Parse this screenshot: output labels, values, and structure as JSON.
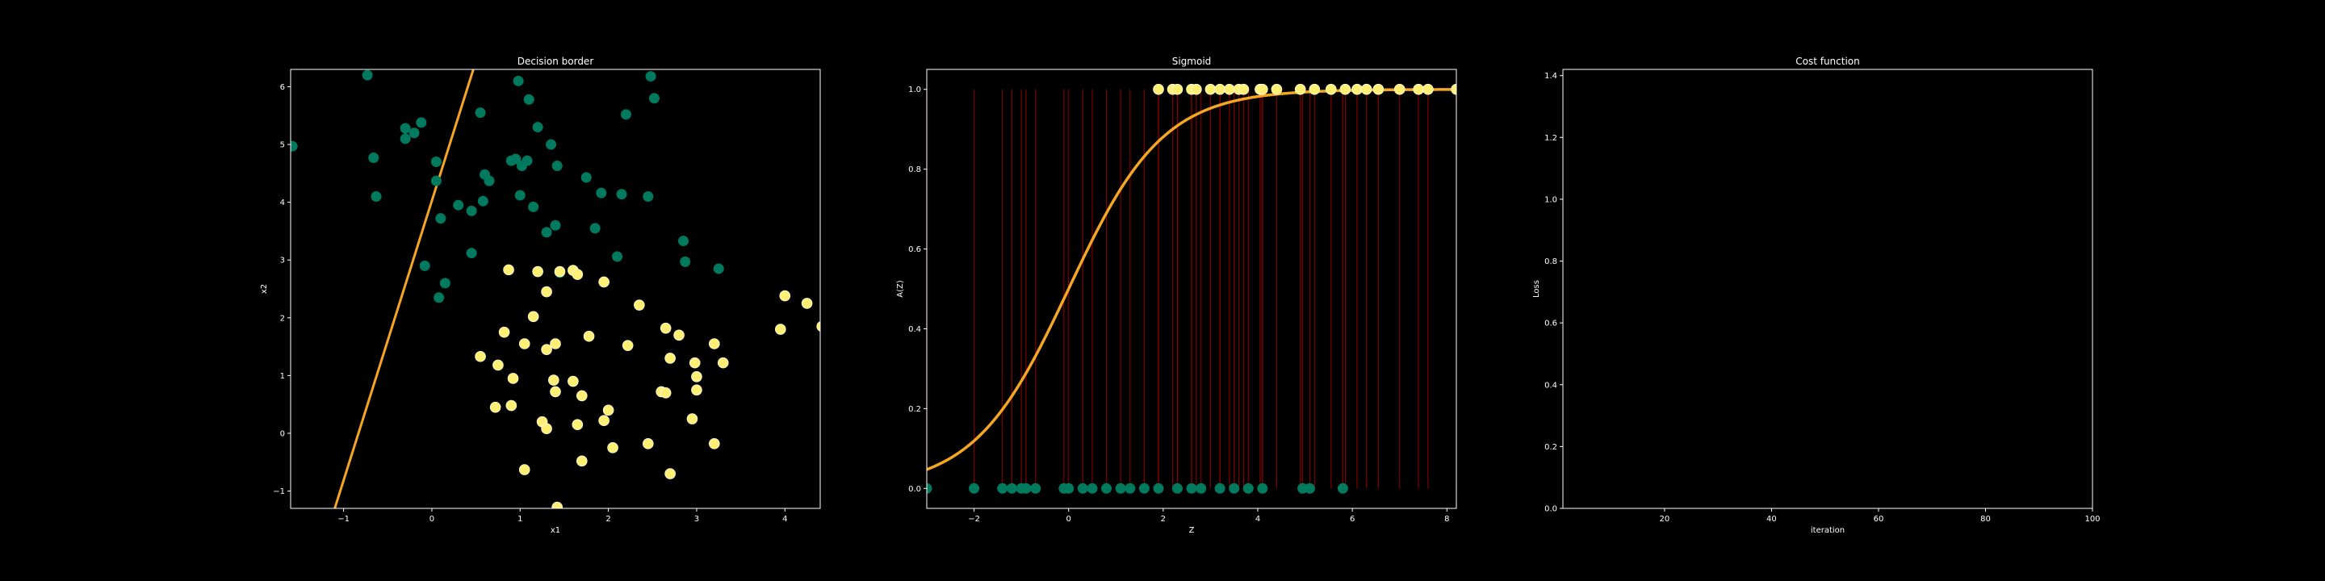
{
  "chart_data": [
    {
      "type": "scatter",
      "title": "Decision border",
      "xlabel": "x1",
      "ylabel": "x2",
      "xlim": [
        -1.6,
        4.4
      ],
      "ylim": [
        -1.3,
        6.3
      ],
      "xticks": [
        "−1",
        "0",
        "1",
        "2",
        "3",
        "4"
      ],
      "xtick_values": [
        -1,
        0,
        1,
        2,
        3,
        4
      ],
      "yticks": [
        "−1",
        "0",
        "1",
        "2",
        "3",
        "4",
        "5",
        "6"
      ],
      "ytick_values": [
        -1,
        0,
        1,
        2,
        3,
        4,
        5,
        6
      ],
      "grid": false,
      "class0_color": "#007a5e",
      "class1_color": "#ffef75",
      "line_color": "#f5a623",
      "line": {
        "x": [
          -1.1,
          0.47
        ],
        "y": [
          -1.3,
          6.3
        ]
      },
      "class0_points": [
        [
          -1.58,
          4.97
        ],
        [
          -0.73,
          6.2
        ],
        [
          -0.66,
          4.77
        ],
        [
          -0.63,
          4.1
        ],
        [
          -0.3,
          5.28
        ],
        [
          -0.3,
          5.1
        ],
        [
          -0.2,
          5.2
        ],
        [
          -0.12,
          5.38
        ],
        [
          -0.08,
          2.9
        ],
        [
          0.05,
          4.7
        ],
        [
          0.08,
          2.35
        ],
        [
          0.1,
          3.72
        ],
        [
          0.05,
          4.37
        ],
        [
          0.15,
          2.6
        ],
        [
          0.3,
          3.95
        ],
        [
          0.45,
          3.85
        ],
        [
          0.45,
          3.12
        ],
        [
          0.55,
          5.55
        ],
        [
          0.58,
          4.02
        ],
        [
          0.6,
          4.48
        ],
        [
          0.65,
          4.37
        ],
        [
          0.9,
          4.72
        ],
        [
          0.95,
          4.75
        ],
        [
          0.98,
          6.1
        ],
        [
          1.0,
          4.12
        ],
        [
          1.02,
          4.63
        ],
        [
          1.08,
          4.72
        ],
        [
          1.1,
          5.78
        ],
        [
          1.15,
          3.92
        ],
        [
          1.2,
          5.3
        ],
        [
          1.3,
          3.48
        ],
        [
          1.35,
          5.0
        ],
        [
          1.4,
          3.6
        ],
        [
          1.42,
          4.63
        ],
        [
          1.45,
          2.78
        ],
        [
          1.75,
          4.43
        ],
        [
          1.85,
          3.55
        ],
        [
          1.92,
          4.16
        ],
        [
          2.1,
          3.06
        ],
        [
          2.15,
          4.14
        ],
        [
          2.2,
          5.52
        ],
        [
          2.45,
          4.1
        ],
        [
          2.48,
          6.18
        ],
        [
          2.52,
          5.8
        ],
        [
          2.85,
          3.33
        ],
        [
          2.87,
          2.97
        ],
        [
          3.25,
          2.85
        ]
      ],
      "class1_points": [
        [
          0.87,
          2.83
        ],
        [
          1.2,
          2.8
        ],
        [
          1.45,
          2.8
        ],
        [
          1.6,
          2.82
        ],
        [
          1.65,
          2.75
        ],
        [
          1.95,
          2.62
        ],
        [
          1.3,
          2.45
        ],
        [
          2.35,
          2.22
        ],
        [
          1.15,
          2.02
        ],
        [
          2.65,
          1.82
        ],
        [
          2.8,
          1.7
        ],
        [
          3.2,
          1.55
        ],
        [
          3.95,
          1.8
        ],
        [
          4.0,
          2.38
        ],
        [
          4.25,
          2.25
        ],
        [
          4.42,
          1.85
        ],
        [
          0.82,
          1.75
        ],
        [
          1.4,
          1.55
        ],
        [
          1.05,
          1.55
        ],
        [
          1.78,
          1.68
        ],
        [
          2.22,
          1.52
        ],
        [
          0.55,
          1.33
        ],
        [
          0.75,
          1.18
        ],
        [
          1.3,
          1.45
        ],
        [
          2.7,
          1.3
        ],
        [
          2.98,
          1.22
        ],
        [
          3.3,
          1.22
        ],
        [
          0.92,
          0.95
        ],
        [
          1.38,
          0.92
        ],
        [
          1.6,
          0.9
        ],
        [
          2.0,
          0.4
        ],
        [
          3.0,
          0.98
        ],
        [
          3.0,
          0.75
        ],
        [
          1.4,
          0.72
        ],
        [
          1.7,
          0.65
        ],
        [
          2.6,
          0.72
        ],
        [
          2.65,
          0.7
        ],
        [
          0.72,
          0.45
        ],
        [
          0.9,
          0.48
        ],
        [
          1.25,
          0.2
        ],
        [
          1.3,
          0.08
        ],
        [
          1.65,
          0.15
        ],
        [
          2.95,
          0.25
        ],
        [
          1.95,
          0.22
        ],
        [
          2.05,
          -0.25
        ],
        [
          2.45,
          -0.18
        ],
        [
          3.2,
          -0.18
        ],
        [
          1.7,
          -0.48
        ],
        [
          1.05,
          -0.63
        ],
        [
          2.7,
          -0.7
        ],
        [
          1.42,
          -1.28
        ]
      ]
    },
    {
      "type": "line",
      "title": "Sigmoid",
      "xlabel": "Z",
      "ylabel": "A(Z)",
      "xlim": [
        -3.0,
        8.2
      ],
      "ylim": [
        -0.05,
        1.05
      ],
      "xticks": [
        "−2",
        "0",
        "2",
        "4",
        "6",
        "8"
      ],
      "xtick_values": [
        -2,
        0,
        2,
        4,
        6,
        8
      ],
      "yticks": [
        "0.0",
        "0.2",
        "0.4",
        "0.6",
        "0.8",
        "1.0"
      ],
      "ytick_values": [
        0.0,
        0.2,
        0.4,
        0.6,
        0.8,
        1.0
      ],
      "grid": false,
      "curve_color": "#f5a623",
      "stem_color": "#8b0000",
      "class0_color": "#007a5e",
      "class1_color": "#ffef75",
      "class0_z": [
        -3.0,
        -2.0,
        -1.4,
        -1.2,
        -1.0,
        -0.9,
        -0.7,
        -0.1,
        0.0,
        0.3,
        0.5,
        0.8,
        1.1,
        1.3,
        1.6,
        1.9,
        2.3,
        2.6,
        2.8,
        3.2,
        3.5,
        3.8,
        4.1,
        4.95,
        5.1,
        5.8
      ],
      "class1_z": [
        1.9,
        2.2,
        2.3,
        2.6,
        2.7,
        3.0,
        3.2,
        3.4,
        3.6,
        3.7,
        4.05,
        4.1,
        4.4,
        4.9,
        5.2,
        5.55,
        5.85,
        6.1,
        6.3,
        6.55,
        7.0,
        7.4,
        7.6,
        8.2
      ]
    },
    {
      "type": "line",
      "title": "Cost function",
      "xlabel": "iteration",
      "ylabel": "Loss",
      "xlim": [
        1,
        100
      ],
      "ylim": [
        0.0,
        1.42
      ],
      "xticks": [
        "20",
        "40",
        "60",
        "80",
        "100"
      ],
      "xtick_values": [
        20,
        40,
        60,
        80,
        100
      ],
      "yticks": [
        "0.0",
        "0.2",
        "0.4",
        "0.6",
        "0.8",
        "1.0",
        "1.2",
        "1.4"
      ],
      "ytick_values": [
        0.0,
        0.2,
        0.4,
        0.6,
        0.8,
        1.0,
        1.2,
        1.4
      ],
      "grid": false,
      "series": []
    }
  ]
}
